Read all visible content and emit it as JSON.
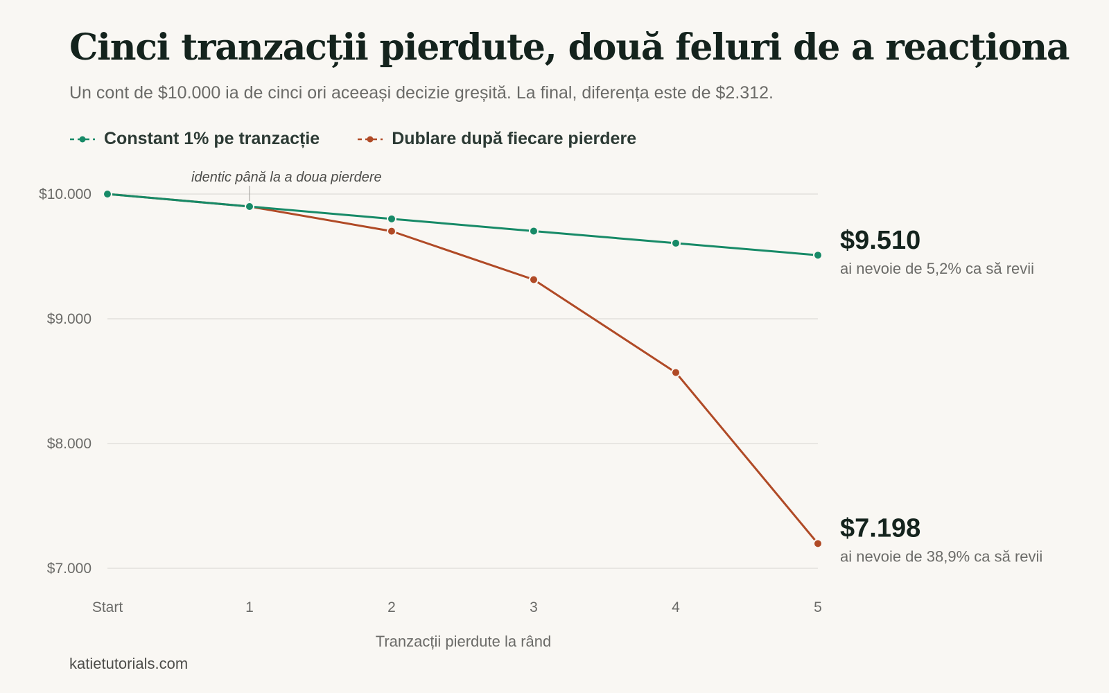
{
  "title": "Cinci tranzacții pierdute, două feluri de a reacționa",
  "subtitle": "Un cont de $10.000 ia de cinci ori aceeași decizie greșită. La final, diferența este de $2.312.",
  "source": "katietutorials.com",
  "colors": {
    "background": "#f9f7f3",
    "constant": "#178a67",
    "doubling": "#b04a26",
    "grid": "#e3e1dc",
    "text": "#14231d",
    "muted": "#6b6b68"
  },
  "chart_data": {
    "type": "line",
    "title": "Cinci tranzacții pierdute, două feluri de a reacționa",
    "xlabel": "Tranzacții pierdute la rând",
    "ylabel": "",
    "categories": [
      "Start",
      "1",
      "2",
      "3",
      "4",
      "5"
    ],
    "y_ticks": [
      10000,
      9000,
      8000,
      7000
    ],
    "y_tick_labels": [
      "$10.000",
      "$9.000",
      "$8.000",
      "$7.000"
    ],
    "ylim": [
      7000,
      10000
    ],
    "grid": true,
    "legend_position": "top-left",
    "series": [
      {
        "name": "Constant 1% pe tranzacție",
        "color": "#178a67",
        "values": [
          10000,
          9900,
          9801,
          9703,
          9606,
          9510
        ],
        "end_label": "$9.510",
        "end_note": "ai nevoie de 5,2% ca să revii"
      },
      {
        "name": "Dublare după fiecare pierdere",
        "color": "#b04a26",
        "values": [
          10000,
          9900,
          9702,
          9314,
          8569,
          7198
        ],
        "end_label": "$7.198",
        "end_note": "ai nevoie de 38,9% ca să revii"
      }
    ],
    "annotations": [
      {
        "text": "identic până la a doua pierdere",
        "x": "1"
      }
    ]
  }
}
